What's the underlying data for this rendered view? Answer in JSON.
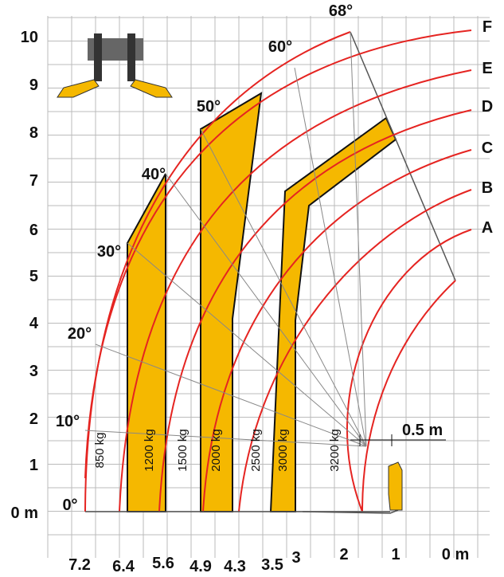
{
  "y_axis": {
    "labels": [
      "0 m",
      "1",
      "2",
      "3",
      "4",
      "5",
      "6",
      "7",
      "8",
      "9",
      "10"
    ]
  },
  "x_axis": {
    "labels": [
      "7.2",
      "6.4",
      "5.6",
      "4.9",
      "4.3",
      "3.5",
      "3",
      "2",
      "1",
      "0 m"
    ]
  },
  "angles": [
    "0°",
    "10°",
    "20°",
    "30°",
    "40°",
    "50°",
    "60°",
    "68°"
  ],
  "arcs": [
    "F",
    "E",
    "D",
    "C",
    "B",
    "A"
  ],
  "loads": [
    "850 kg",
    "1200 kg",
    "1500 kg",
    "2000 kg",
    "2500 kg",
    "3000 kg",
    "3200 kg"
  ],
  "dimension": "0.5 m"
}
